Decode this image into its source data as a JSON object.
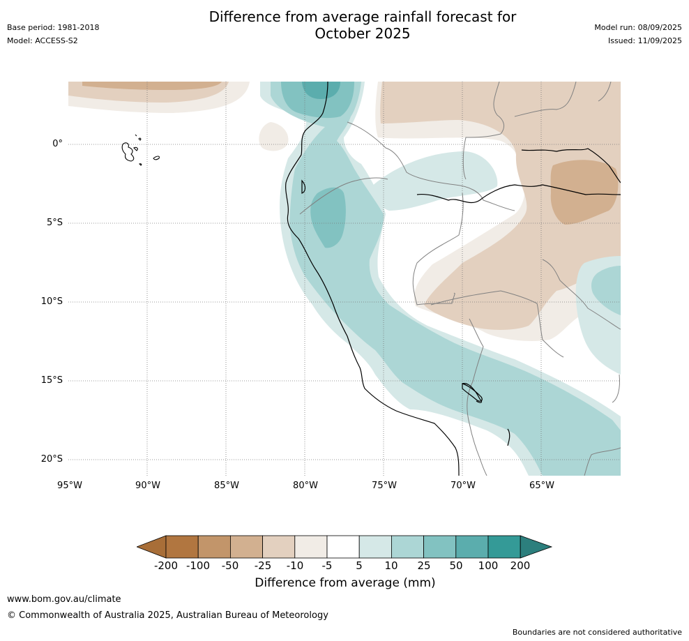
{
  "header": {
    "title_line1": "Difference from average rainfall forecast for",
    "title_line2": "October 2025",
    "base_period": "Base period: 1981-2018",
    "model": "Model: ACCESS-S2",
    "model_run": "Model run: 08/09/2025",
    "issued": "Issued: 11/09/2025"
  },
  "axes": {
    "lat_labels": [
      "0°",
      "5°S",
      "10°S",
      "15°S",
      "20°S"
    ],
    "lon_labels": [
      "95°W",
      "90°W",
      "85°W",
      "80°W",
      "75°W",
      "70°W",
      "65°W"
    ]
  },
  "legend": {
    "label": "Difference from average (mm)",
    "ticks": [
      "-200",
      "-100",
      "-50",
      "-25",
      "-10",
      "-5",
      "5",
      "10",
      "25",
      "50",
      "100",
      "200"
    ],
    "colors": [
      "#a86e38",
      "#b17640",
      "#c2956a",
      "#d2b090",
      "#e3d0bf",
      "#f1ece6",
      "#ffffff",
      "#d5e8e7",
      "#acd6d5",
      "#82c2c1",
      "#5badad",
      "#349a97",
      "#2c7f7d"
    ]
  },
  "footer": {
    "website": "www.bom.gov.au/climate",
    "copyright": "© Commonwealth of Australia 2025, Australian Bureau of Meteorology",
    "disclaimer": "Boundaries are not considered authoritative"
  }
}
